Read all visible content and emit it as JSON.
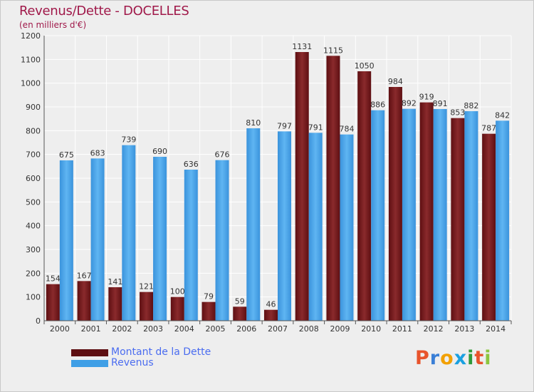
{
  "header": {
    "title": "Revenus/Dette - DOCELLES",
    "subtitle": "(en milliers d'€)"
  },
  "chart_data": {
    "type": "bar",
    "categories": [
      "2000",
      "2001",
      "2002",
      "2003",
      "2004",
      "2005",
      "2006",
      "2007",
      "2008",
      "2009",
      "2010",
      "2011",
      "2012",
      "2013",
      "2014"
    ],
    "series": [
      {
        "name": "Montant de la Dette",
        "color": "#7a1f22",
        "values": [
          154,
          167,
          141,
          121,
          100,
          79,
          59,
          46,
          1131,
          1115,
          1050,
          984,
          919,
          853,
          787
        ]
      },
      {
        "name": "Revenus",
        "color": "#3f9fe6",
        "values": [
          675,
          683,
          739,
          690,
          636,
          676,
          810,
          797,
          791,
          784,
          886,
          892,
          891,
          882,
          842
        ]
      }
    ],
    "ylim": [
      0,
      1200
    ],
    "yticks": [
      0,
      100,
      200,
      300,
      400,
      500,
      600,
      700,
      800,
      900,
      1000,
      1100,
      1200
    ],
    "grid": true,
    "legend_placement": "bottom-left"
  },
  "legend": {
    "items": [
      {
        "label": "Montant de la Dette",
        "color": "#7a1f22"
      },
      {
        "label": "Revenus",
        "color": "#3f9fe6"
      }
    ]
  },
  "logo": {
    "letters": [
      "P",
      "r",
      "o",
      "x",
      "i",
      "t",
      "i"
    ],
    "colors": [
      "#e8532b",
      "#3a7fd6",
      "#f2a000",
      "#1aa0e0",
      "#2f9a3a",
      "#e8532b",
      "#8cc63f"
    ]
  }
}
